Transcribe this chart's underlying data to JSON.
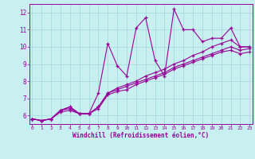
{
  "xlabel": "Windchill (Refroidissement éolien,°C)",
  "bg_color": "#c8f0f0",
  "grid_color": "#aadcdc",
  "line_color": "#990099",
  "marker": "+",
  "xmin": 0,
  "xmax": 23,
  "ymin": 5.5,
  "ymax": 12.5,
  "series": [
    [
      5.8,
      5.7,
      5.8,
      6.3,
      6.5,
      6.1,
      6.1,
      7.3,
      10.2,
      8.9,
      8.3,
      11.1,
      11.7,
      9.2,
      8.3,
      12.2,
      11.0,
      11.0,
      10.3,
      10.5,
      10.5,
      11.1,
      10.0,
      10.0
    ],
    [
      5.8,
      5.7,
      5.8,
      6.3,
      6.5,
      6.1,
      6.1,
      6.5,
      7.3,
      7.6,
      7.8,
      8.0,
      8.3,
      8.5,
      8.7,
      9.0,
      9.2,
      9.5,
      9.7,
      10.0,
      10.2,
      10.4,
      10.0,
      10.0
    ],
    [
      5.8,
      5.7,
      5.8,
      6.2,
      6.3,
      6.1,
      6.1,
      6.4,
      7.2,
      7.4,
      7.5,
      7.8,
      8.0,
      8.2,
      8.4,
      8.7,
      8.9,
      9.1,
      9.3,
      9.5,
      9.7,
      9.8,
      9.6,
      9.7
    ],
    [
      5.8,
      5.7,
      5.8,
      6.3,
      6.4,
      6.1,
      6.1,
      6.5,
      7.3,
      7.5,
      7.7,
      7.9,
      8.1,
      8.3,
      8.5,
      8.8,
      9.0,
      9.2,
      9.4,
      9.6,
      9.8,
      10.0,
      9.8,
      9.9
    ]
  ]
}
